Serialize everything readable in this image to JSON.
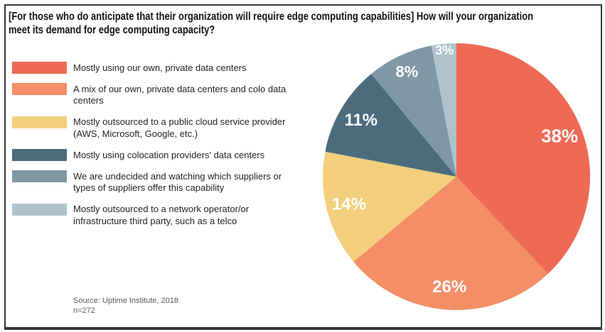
{
  "title": {
    "line1": "[For those who do anticipate that their organization will require edge computing capabilities] How will your organization",
    "line2": "meet its demand for edge computing capacity?"
  },
  "source": {
    "line1": "Source: Uptime Institute, 2018",
    "line2": "n=272"
  },
  "chart_data": {
    "type": "pie",
    "title": "[For those who do anticipate that their organization will require edge computing capabilities] How will your organization meet its demand for edge computing capacity?",
    "start_angle_deg": 0,
    "direction": "clockwise",
    "legend_position": "left",
    "value_label_suffix": "%",
    "value_label_color": "#ffffff",
    "slices": [
      {
        "label": "Mostly using our own, private data centers",
        "value": 38,
        "color": "#EE6A54"
      },
      {
        "label": "A mix of our own, private data centers and colo data centers",
        "value": 26,
        "color": "#F38E66"
      },
      {
        "label": "Mostly outsourced to a public cloud service provider (AWS, Microsoft, Google, etc.)",
        "value": 14,
        "color": "#F3CF7D"
      },
      {
        "label": "Mostly using colocation providers' data centers",
        "value": 11,
        "color": "#4C6C7E"
      },
      {
        "label": "We are undecided and watching which suppliers or types of suppliers offer this capability",
        "value": 8,
        "color": "#7E98A6"
      },
      {
        "label": "Mostly outsourced to a network operator/or infrastructure third party, such as a telco",
        "value": 3,
        "color": "#AFC3CD"
      }
    ],
    "frame_color": "#33383f"
  }
}
